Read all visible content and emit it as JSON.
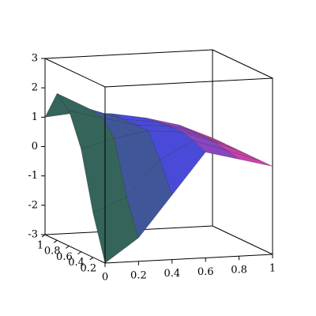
{
  "chart_data": {
    "type": "surface",
    "x": [
      0,
      0.2,
      0.4,
      0.6,
      0.8,
      1
    ],
    "y": [
      0,
      0.2,
      0.4,
      0.6,
      0.8,
      1
    ],
    "z": [
      [
        -3,
        -2.2,
        -0.8,
        0.6,
        0.3,
        0
      ],
      [
        -1.5,
        -1.0,
        0.2,
        0.8,
        0.4,
        0
      ],
      [
        0.5,
        0.8,
        1.0,
        0.9,
        0.5,
        0
      ],
      [
        1.6,
        1.3,
        1.0,
        0.9,
        0.5,
        0
      ],
      [
        2.0,
        1.4,
        1.0,
        0.85,
        0.5,
        0
      ],
      [
        1.0,
        1.1,
        1.0,
        0.8,
        0.5,
        0
      ]
    ],
    "colors": [
      "#2f6b3a",
      "#4a4ad8",
      "#e6409c"
    ],
    "xlim": [
      0,
      1
    ],
    "ylim": [
      0,
      1
    ],
    "zlim": [
      -3,
      3
    ],
    "xticks": [
      0,
      0.2,
      0.4,
      0.6,
      0.8,
      1
    ],
    "yticks": [
      0.2,
      0.4,
      0.6,
      0.8,
      1
    ],
    "zticks": [
      -3,
      -2,
      -1,
      0,
      1,
      2,
      3
    ]
  }
}
